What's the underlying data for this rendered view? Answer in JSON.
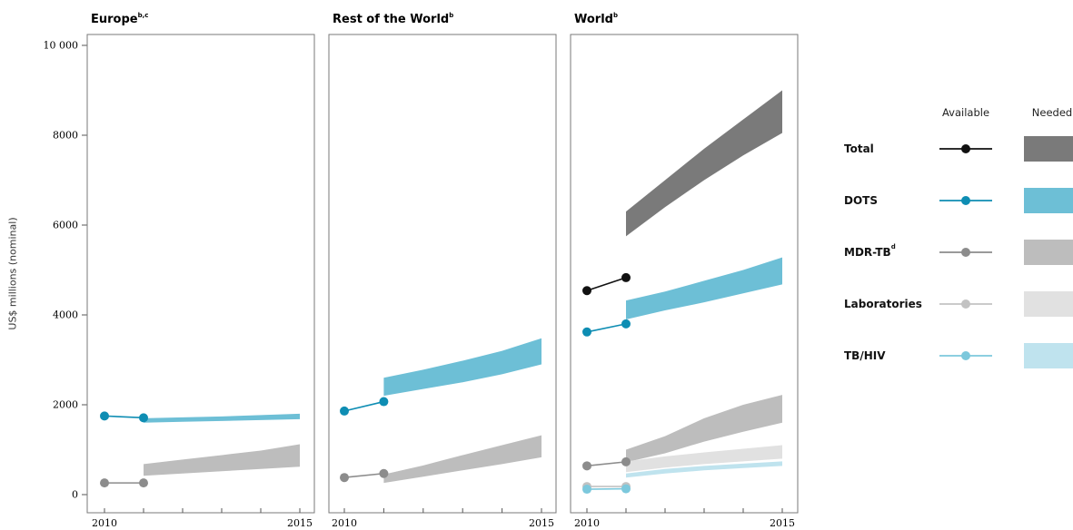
{
  "chart_data": {
    "type": "line",
    "ylabel": "US$ millions (nominal)",
    "ylim": [
      0,
      10000
    ],
    "yticks": [
      {
        "value": 0,
        "label": "0"
      },
      {
        "value": 2000,
        "label": "2000"
      },
      {
        "value": 4000,
        "label": "4000"
      },
      {
        "value": 6000,
        "label": "6000"
      },
      {
        "value": 8000,
        "label": "8000"
      },
      {
        "value": 10000,
        "label": "10 000"
      }
    ],
    "xlim": [
      2010,
      2015
    ],
    "xtick_labels": [
      {
        "value": 2010,
        "label": "2010"
      },
      {
        "value": 2015,
        "label": "2015"
      }
    ],
    "legend": {
      "available_header": "Available",
      "needed_header": "Needed",
      "entries": [
        {
          "key": "total",
          "label": "Total",
          "sup": "",
          "line_color": "#111111",
          "band_color": "#7a7a7a"
        },
        {
          "key": "dots",
          "label": "DOTS",
          "sup": "",
          "line_color": "#0e8db3",
          "band_color": "#6dbfd6"
        },
        {
          "key": "mdr",
          "label": "MDR-TB",
          "sup": "d",
          "line_color": "#8c8c8c",
          "band_color": "#bdbdbd"
        },
        {
          "key": "lab",
          "label": "Laboratories",
          "sup": "",
          "line_color": "#c2c2c2",
          "band_color": "#e1e1e1"
        },
        {
          "key": "tbhiv",
          "label": "TB/HIV",
          "sup": "",
          "line_color": "#7cc8dc",
          "band_color": "#bfe3ee"
        }
      ]
    },
    "panels": [
      {
        "title": "Europe",
        "title_sup": "b,c",
        "available": [
          {
            "key": "dots",
            "x": [
              2010,
              2011
            ],
            "y": [
              1750,
              1710
            ]
          },
          {
            "key": "mdr",
            "x": [
              2010,
              2011
            ],
            "y": [
              260,
              260
            ]
          }
        ],
        "needed": [
          {
            "key": "dots",
            "x": [
              2011,
              2012,
              2013,
              2014,
              2015
            ],
            "low": [
              1600,
              1620,
              1640,
              1660,
              1680
            ],
            "high": [
              1700,
              1720,
              1740,
              1770,
              1800
            ]
          },
          {
            "key": "mdr",
            "x": [
              2011,
              2012,
              2013,
              2014,
              2015
            ],
            "low": [
              420,
              470,
              520,
              570,
              620
            ],
            "high": [
              680,
              780,
              880,
              980,
              1120
            ]
          }
        ]
      },
      {
        "title": "Rest of the World",
        "title_sup": "b",
        "available": [
          {
            "key": "dots",
            "x": [
              2010,
              2011
            ],
            "y": [
              1860,
              2070
            ]
          },
          {
            "key": "mdr",
            "x": [
              2010,
              2011
            ],
            "y": [
              380,
              470
            ]
          }
        ],
        "needed": [
          {
            "key": "dots",
            "x": [
              2011,
              2012,
              2013,
              2014,
              2015
            ],
            "low": [
              2200,
              2350,
              2500,
              2680,
              2900
            ],
            "high": [
              2600,
              2780,
              2980,
              3200,
              3480
            ]
          },
          {
            "key": "mdr",
            "x": [
              2011,
              2012,
              2013,
              2014,
              2015
            ],
            "low": [
              260,
              400,
              540,
              680,
              830
            ],
            "high": [
              450,
              650,
              880,
              1100,
              1320
            ]
          }
        ]
      },
      {
        "title": "World",
        "title_sup": "b",
        "available": [
          {
            "key": "total",
            "x": [
              2010,
              2011
            ],
            "y": [
              4540,
              4830
            ]
          },
          {
            "key": "dots",
            "x": [
              2010,
              2011
            ],
            "y": [
              3620,
              3800
            ]
          },
          {
            "key": "mdr",
            "x": [
              2010,
              2011
            ],
            "y": [
              640,
              730
            ]
          },
          {
            "key": "lab",
            "x": [
              2010,
              2011
            ],
            "y": [
              180,
              180
            ]
          },
          {
            "key": "tbhiv",
            "x": [
              2010,
              2011
            ],
            "y": [
              120,
              130
            ]
          }
        ],
        "needed": [
          {
            "key": "total",
            "x": [
              2011,
              2012,
              2013,
              2014,
              2015
            ],
            "low": [
              5750,
              6400,
              7000,
              7550,
              8050
            ],
            "high": [
              6300,
              7000,
              7700,
              8350,
              9000
            ]
          },
          {
            "key": "dots",
            "x": [
              2011,
              2012,
              2013,
              2014,
              2015
            ],
            "low": [
              3900,
              4100,
              4280,
              4480,
              4680
            ],
            "high": [
              4320,
              4520,
              4760,
              5000,
              5280
            ]
          },
          {
            "key": "mdr",
            "x": [
              2011,
              2012,
              2013,
              2014,
              2015
            ],
            "low": [
              720,
              920,
              1180,
              1400,
              1600
            ],
            "high": [
              1000,
              1300,
              1700,
              2000,
              2220
            ]
          },
          {
            "key": "lab",
            "x": [
              2011,
              2012,
              2013,
              2014,
              2015
            ],
            "low": [
              500,
              600,
              680,
              740,
              800
            ],
            "high": [
              740,
              850,
              940,
              1020,
              1100
            ]
          },
          {
            "key": "tbhiv",
            "x": [
              2011,
              2012,
              2013,
              2014,
              2015
            ],
            "low": [
              380,
              470,
              540,
              590,
              640
            ],
            "high": [
              470,
              570,
              640,
              690,
              740
            ]
          }
        ]
      }
    ]
  }
}
